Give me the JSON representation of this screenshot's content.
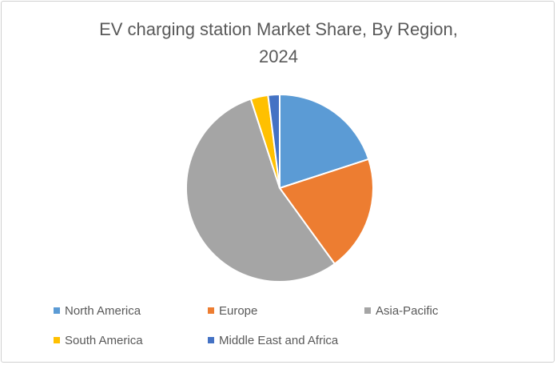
{
  "chart_data": {
    "type": "pie",
    "title_lines": [
      "EV charging station Market Share, By Region,",
      "2024"
    ],
    "categories": [
      "North America",
      "Europe",
      "Asia-Pacific",
      "South America",
      "Middle East and Africa"
    ],
    "values": [
      20,
      20,
      55,
      3,
      2
    ],
    "colors": [
      "#5b9bd5",
      "#ed7d31",
      "#a5a5a5",
      "#ffc000",
      "#4472c4"
    ],
    "legend_position": "bottom",
    "start_angle_deg": 0,
    "direction": "clockwise"
  }
}
